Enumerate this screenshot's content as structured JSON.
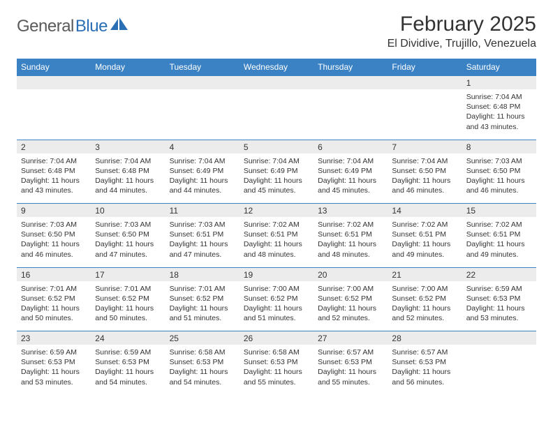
{
  "brand": {
    "text1": "General",
    "text2": "Blue"
  },
  "title": "February 2025",
  "location": "El Dividive, Trujillo, Venezuela",
  "colors": {
    "header_bg": "#3b82c4",
    "header_text": "#ffffff",
    "daynum_bg": "#ececec",
    "rule": "#3b82c4",
    "text": "#333333",
    "brand_gray": "#5a5a5a",
    "brand_blue": "#2a6fb5",
    "page_bg": "#ffffff"
  },
  "day_names": [
    "Sunday",
    "Monday",
    "Tuesday",
    "Wednesday",
    "Thursday",
    "Friday",
    "Saturday"
  ],
  "weeks": [
    [
      null,
      null,
      null,
      null,
      null,
      null,
      {
        "n": "1",
        "sr": "7:04 AM",
        "ss": "6:48 PM",
        "dl": "11 hours and 43 minutes."
      }
    ],
    [
      {
        "n": "2",
        "sr": "7:04 AM",
        "ss": "6:48 PM",
        "dl": "11 hours and 43 minutes."
      },
      {
        "n": "3",
        "sr": "7:04 AM",
        "ss": "6:48 PM",
        "dl": "11 hours and 44 minutes."
      },
      {
        "n": "4",
        "sr": "7:04 AM",
        "ss": "6:49 PM",
        "dl": "11 hours and 44 minutes."
      },
      {
        "n": "5",
        "sr": "7:04 AM",
        "ss": "6:49 PM",
        "dl": "11 hours and 45 minutes."
      },
      {
        "n": "6",
        "sr": "7:04 AM",
        "ss": "6:49 PM",
        "dl": "11 hours and 45 minutes."
      },
      {
        "n": "7",
        "sr": "7:04 AM",
        "ss": "6:50 PM",
        "dl": "11 hours and 46 minutes."
      },
      {
        "n": "8",
        "sr": "7:03 AM",
        "ss": "6:50 PM",
        "dl": "11 hours and 46 minutes."
      }
    ],
    [
      {
        "n": "9",
        "sr": "7:03 AM",
        "ss": "6:50 PM",
        "dl": "11 hours and 46 minutes."
      },
      {
        "n": "10",
        "sr": "7:03 AM",
        "ss": "6:50 PM",
        "dl": "11 hours and 47 minutes."
      },
      {
        "n": "11",
        "sr": "7:03 AM",
        "ss": "6:51 PM",
        "dl": "11 hours and 47 minutes."
      },
      {
        "n": "12",
        "sr": "7:02 AM",
        "ss": "6:51 PM",
        "dl": "11 hours and 48 minutes."
      },
      {
        "n": "13",
        "sr": "7:02 AM",
        "ss": "6:51 PM",
        "dl": "11 hours and 48 minutes."
      },
      {
        "n": "14",
        "sr": "7:02 AM",
        "ss": "6:51 PM",
        "dl": "11 hours and 49 minutes."
      },
      {
        "n": "15",
        "sr": "7:02 AM",
        "ss": "6:51 PM",
        "dl": "11 hours and 49 minutes."
      }
    ],
    [
      {
        "n": "16",
        "sr": "7:01 AM",
        "ss": "6:52 PM",
        "dl": "11 hours and 50 minutes."
      },
      {
        "n": "17",
        "sr": "7:01 AM",
        "ss": "6:52 PM",
        "dl": "11 hours and 50 minutes."
      },
      {
        "n": "18",
        "sr": "7:01 AM",
        "ss": "6:52 PM",
        "dl": "11 hours and 51 minutes."
      },
      {
        "n": "19",
        "sr": "7:00 AM",
        "ss": "6:52 PM",
        "dl": "11 hours and 51 minutes."
      },
      {
        "n": "20",
        "sr": "7:00 AM",
        "ss": "6:52 PM",
        "dl": "11 hours and 52 minutes."
      },
      {
        "n": "21",
        "sr": "7:00 AM",
        "ss": "6:52 PM",
        "dl": "11 hours and 52 minutes."
      },
      {
        "n": "22",
        "sr": "6:59 AM",
        "ss": "6:53 PM",
        "dl": "11 hours and 53 minutes."
      }
    ],
    [
      {
        "n": "23",
        "sr": "6:59 AM",
        "ss": "6:53 PM",
        "dl": "11 hours and 53 minutes."
      },
      {
        "n": "24",
        "sr": "6:59 AM",
        "ss": "6:53 PM",
        "dl": "11 hours and 54 minutes."
      },
      {
        "n": "25",
        "sr": "6:58 AM",
        "ss": "6:53 PM",
        "dl": "11 hours and 54 minutes."
      },
      {
        "n": "26",
        "sr": "6:58 AM",
        "ss": "6:53 PM",
        "dl": "11 hours and 55 minutes."
      },
      {
        "n": "27",
        "sr": "6:57 AM",
        "ss": "6:53 PM",
        "dl": "11 hours and 55 minutes."
      },
      {
        "n": "28",
        "sr": "6:57 AM",
        "ss": "6:53 PM",
        "dl": "11 hours and 56 minutes."
      },
      null
    ]
  ],
  "labels": {
    "sunrise": "Sunrise:",
    "sunset": "Sunset:",
    "daylight": "Daylight:"
  }
}
